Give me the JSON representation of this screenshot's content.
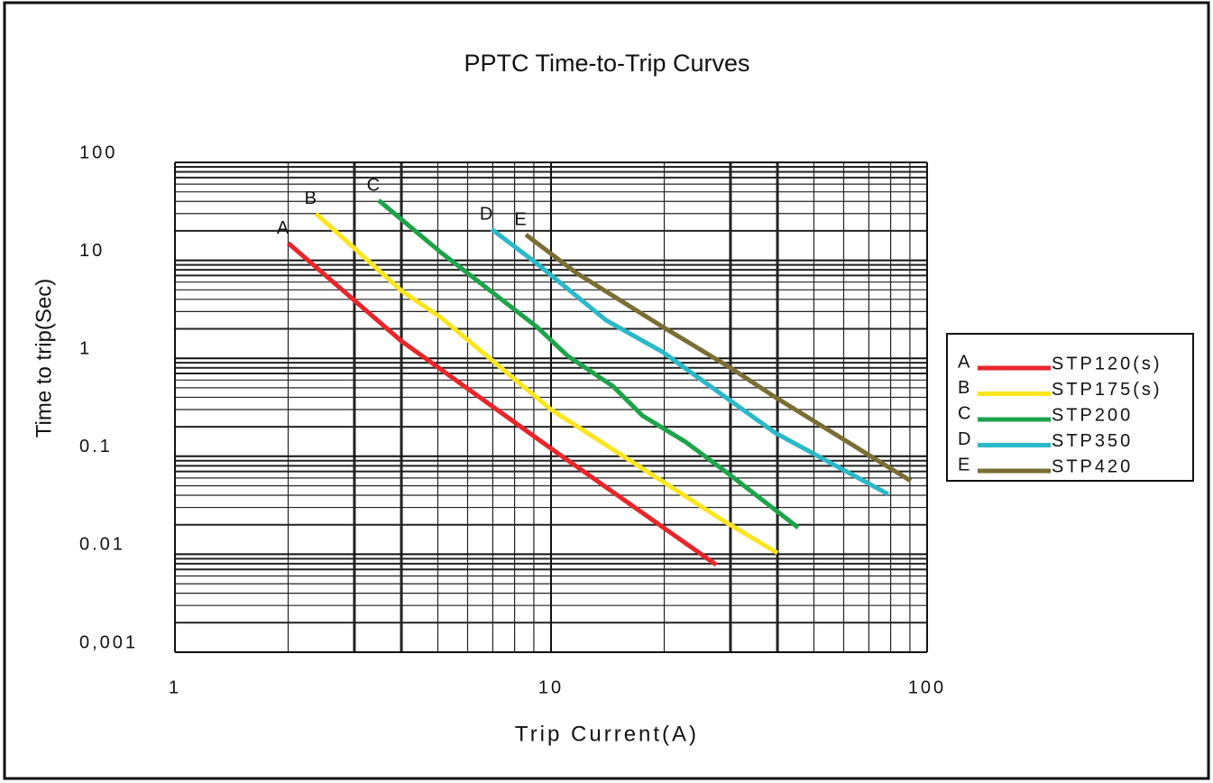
{
  "chart_data": {
    "type": "line",
    "title": "PPTC Time-to-Trip Curves",
    "x_label": "Trip Current(A)",
    "y_label": "Time to trip(Sec)",
    "x_scale": "log",
    "y_scale": "log",
    "xlim": [
      1,
      100
    ],
    "xticks": [
      1,
      10,
      100
    ],
    "ylim": [
      0.001,
      100
    ],
    "yticks": [
      100,
      10,
      1,
      0.1,
      0.01,
      {
        "value": 0.001,
        "label": "0,001"
      }
    ],
    "grid": true,
    "minor_grid": true,
    "legend": "right",
    "series": [
      {
        "label": "A",
        "name": "STP120(s)",
        "color": "#e8262a",
        "x": [
          2,
          4,
          10,
          27.5
        ],
        "values": [
          15,
          1.5,
          0.12,
          0.0078
        ]
      },
      {
        "label": "B",
        "name": "STP175(s)",
        "color": "#fbe51f",
        "x": [
          2.37,
          4,
          5.1,
          10,
          28.4,
          40
        ],
        "values": [
          30,
          4.9,
          2.6,
          0.3,
          0.0226,
          0.0103
        ]
      },
      {
        "label": "C",
        "name": "STP200",
        "color": "#1ea34a",
        "x": [
          3.48,
          5.1,
          9.16,
          11.1,
          14.6,
          17.5,
          22.8,
          30,
          45.4
        ],
        "values": [
          41,
          12,
          2.1,
          1.05,
          0.52,
          0.26,
          0.14,
          0.064,
          0.0187
        ]
      },
      {
        "label": "D",
        "name": "STP350",
        "color": "#2bb8c8",
        "x": [
          6.95,
          9.16,
          14,
          19.8,
          39.5,
          78.8
        ],
        "values": [
          20.8,
          9.3,
          2.45,
          1.16,
          0.173,
          0.041
        ]
      },
      {
        "label": "E",
        "name": "STP420",
        "color": "#7a6e35",
        "x": [
          8.57,
          11.7,
          19.8,
          30,
          39.5,
          90.5
        ],
        "values": [
          18.3,
          7.4,
          2.1,
          0.8,
          0.4,
          0.056
        ]
      }
    ]
  }
}
